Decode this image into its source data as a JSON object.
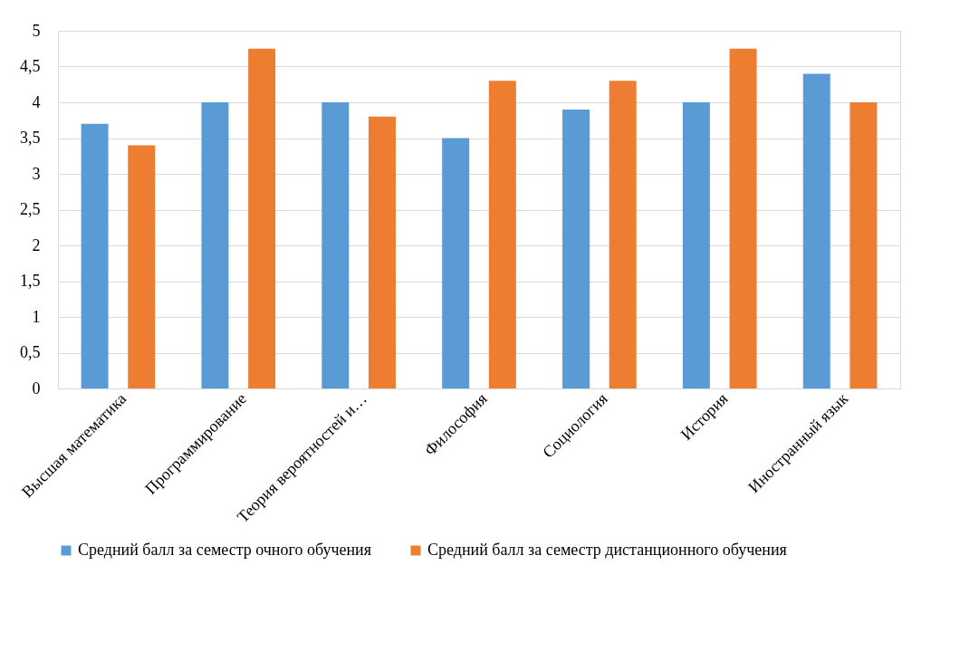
{
  "chart_data": {
    "type": "bar",
    "categories": [
      "Высшая математика",
      "Программирование",
      "Теория вероятностей и…",
      "Философия",
      "Социология",
      "История",
      "Иностранный язык"
    ],
    "series": [
      {
        "name": "Средний балл за семестр очного обучения",
        "color": "#5b9bd5",
        "values": [
          3.7,
          4,
          4,
          3.5,
          3.9,
          4,
          4.4
        ]
      },
      {
        "name": "Средний балл за семестр дистанционного обучения",
        "color": "#ed7d31",
        "values": [
          3.4,
          4.75,
          3.8,
          4.3,
          4.3,
          4.75,
          4
        ]
      }
    ],
    "ylim": [
      0,
      5
    ],
    "yticks": [
      0,
      {
        "value": 0.5,
        "label": "0,5"
      },
      1,
      {
        "value": 1.5,
        "label": "1,5"
      },
      2,
      {
        "value": 2.5,
        "label": "2,5"
      },
      3,
      {
        "value": 3.5,
        "label": "3,5"
      },
      4,
      {
        "value": 4.5,
        "label": "4,5"
      },
      5
    ],
    "grid": "y",
    "legend": "bottom"
  }
}
